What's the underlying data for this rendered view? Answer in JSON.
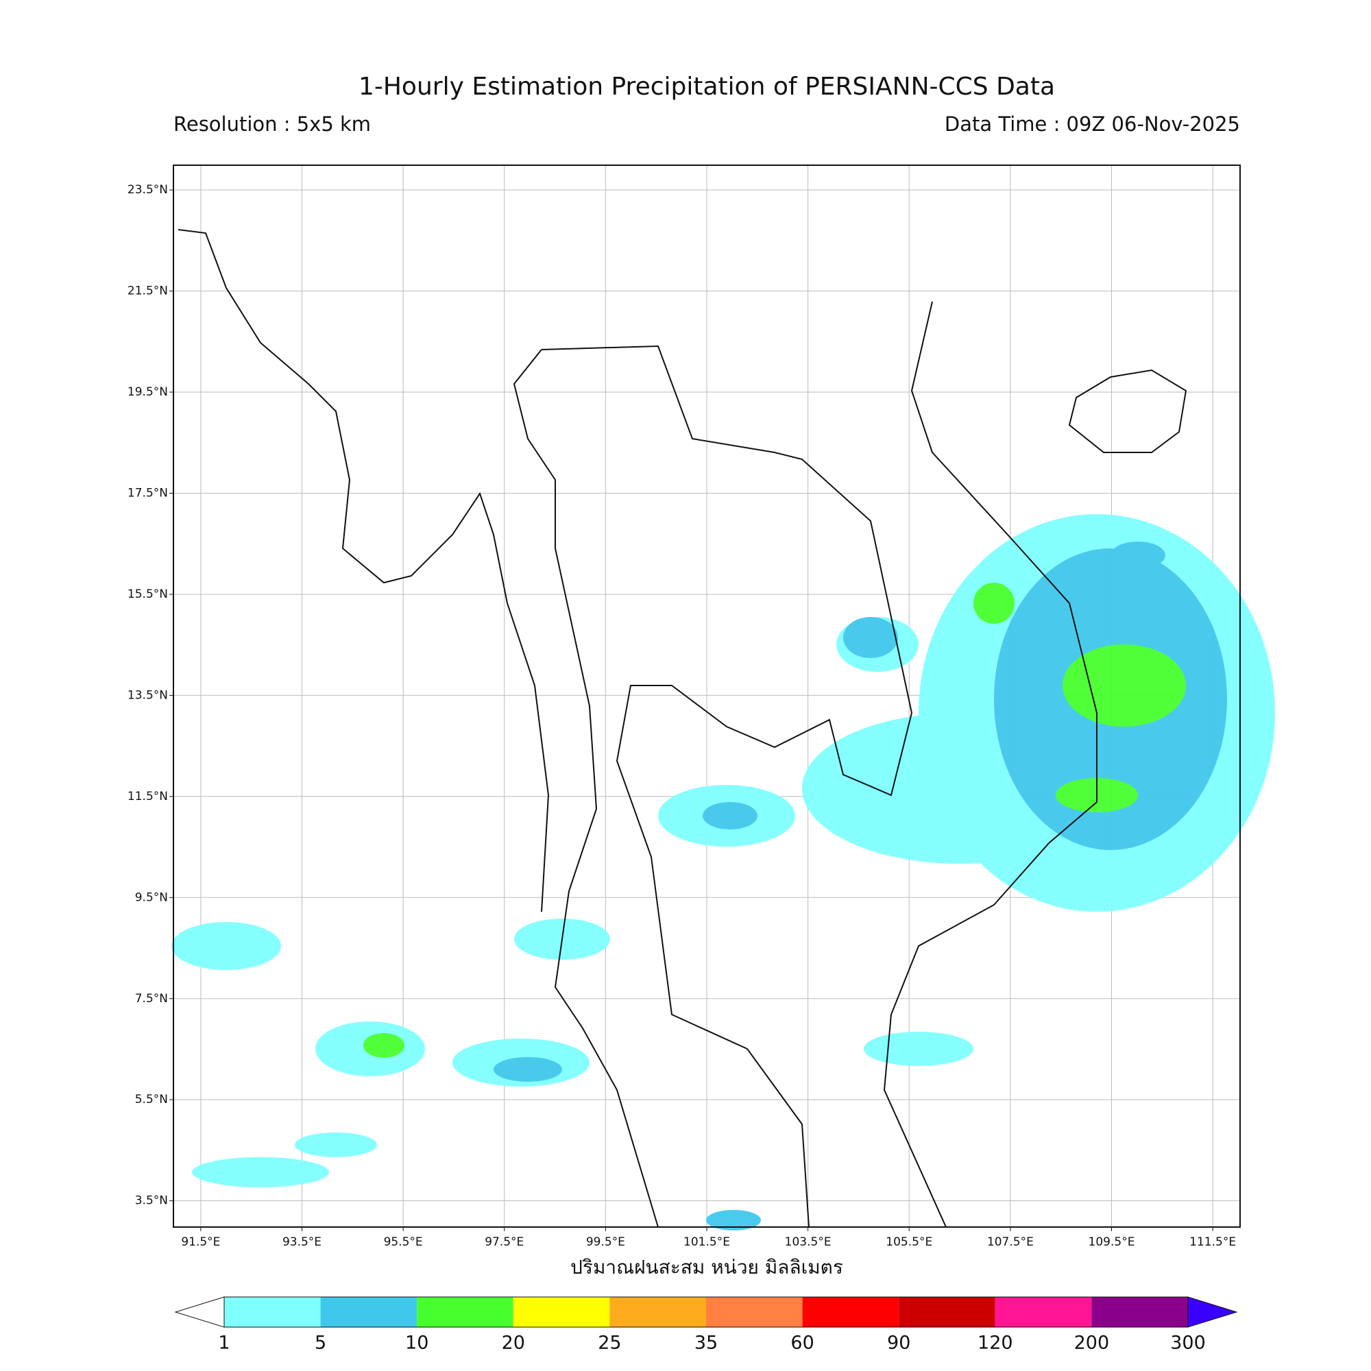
{
  "title": "1-Hourly Estimation Precipitation of PERSIANN-CCS Data",
  "subtitle_left": "Resolution : 5x5 km",
  "subtitle_right": "Data Time : 09Z 06-Nov-2025",
  "map": {
    "xlim": [
      90.96,
      112.04
    ],
    "ylim": [
      2.98,
      23.99
    ],
    "grid": true,
    "xticks": [
      {
        "value": 91.5,
        "label": "91.5°E"
      },
      {
        "value": 93.5,
        "label": "93.5°E"
      },
      {
        "value": 95.5,
        "label": "95.5°E"
      },
      {
        "value": 97.5,
        "label": "97.5°E"
      },
      {
        "value": 99.5,
        "label": "99.5°E"
      },
      {
        "value": 101.5,
        "label": "101.5°E"
      },
      {
        "value": 103.5,
        "label": "103.5°E"
      },
      {
        "value": 105.5,
        "label": "105.5°E"
      },
      {
        "value": 107.5,
        "label": "107.5°E"
      },
      {
        "value": 109.5,
        "label": "109.5°E"
      },
      {
        "value": 111.5,
        "label": "111.5°E"
      }
    ],
    "yticks": [
      {
        "value": 23.5,
        "label": "23.5°N"
      },
      {
        "value": 21.5,
        "label": "21.5°N"
      },
      {
        "value": 19.5,
        "label": "19.5°N"
      },
      {
        "value": 17.5,
        "label": "17.5°N"
      },
      {
        "value": 15.5,
        "label": "15.5°N"
      },
      {
        "value": 13.5,
        "label": "13.5°N"
      },
      {
        "value": 11.5,
        "label": "11.5°N"
      },
      {
        "value": 9.5,
        "label": "9.5°N"
      },
      {
        "value": 7.5,
        "label": "7.5°N"
      },
      {
        "value": 5.5,
        "label": "5.5°N"
      },
      {
        "value": 3.5,
        "label": "3.5°N"
      }
    ]
  },
  "colorbar": {
    "label": "ปริมาณฝนสะสม หน่วย มิลลิเมตร",
    "levels": [
      1,
      5,
      10,
      20,
      25,
      35,
      60,
      90,
      120,
      200,
      300
    ],
    "colors": [
      "#80ffff",
      "#40c8ec",
      "#48ff2e",
      "#ffff00",
      "#ffab1e",
      "#ff8040",
      "#ff0000",
      "#cc0000",
      "#ff1493",
      "#8b008b"
    ],
    "under_color": "#ffffff",
    "over_color": "#3a00ff"
  }
}
